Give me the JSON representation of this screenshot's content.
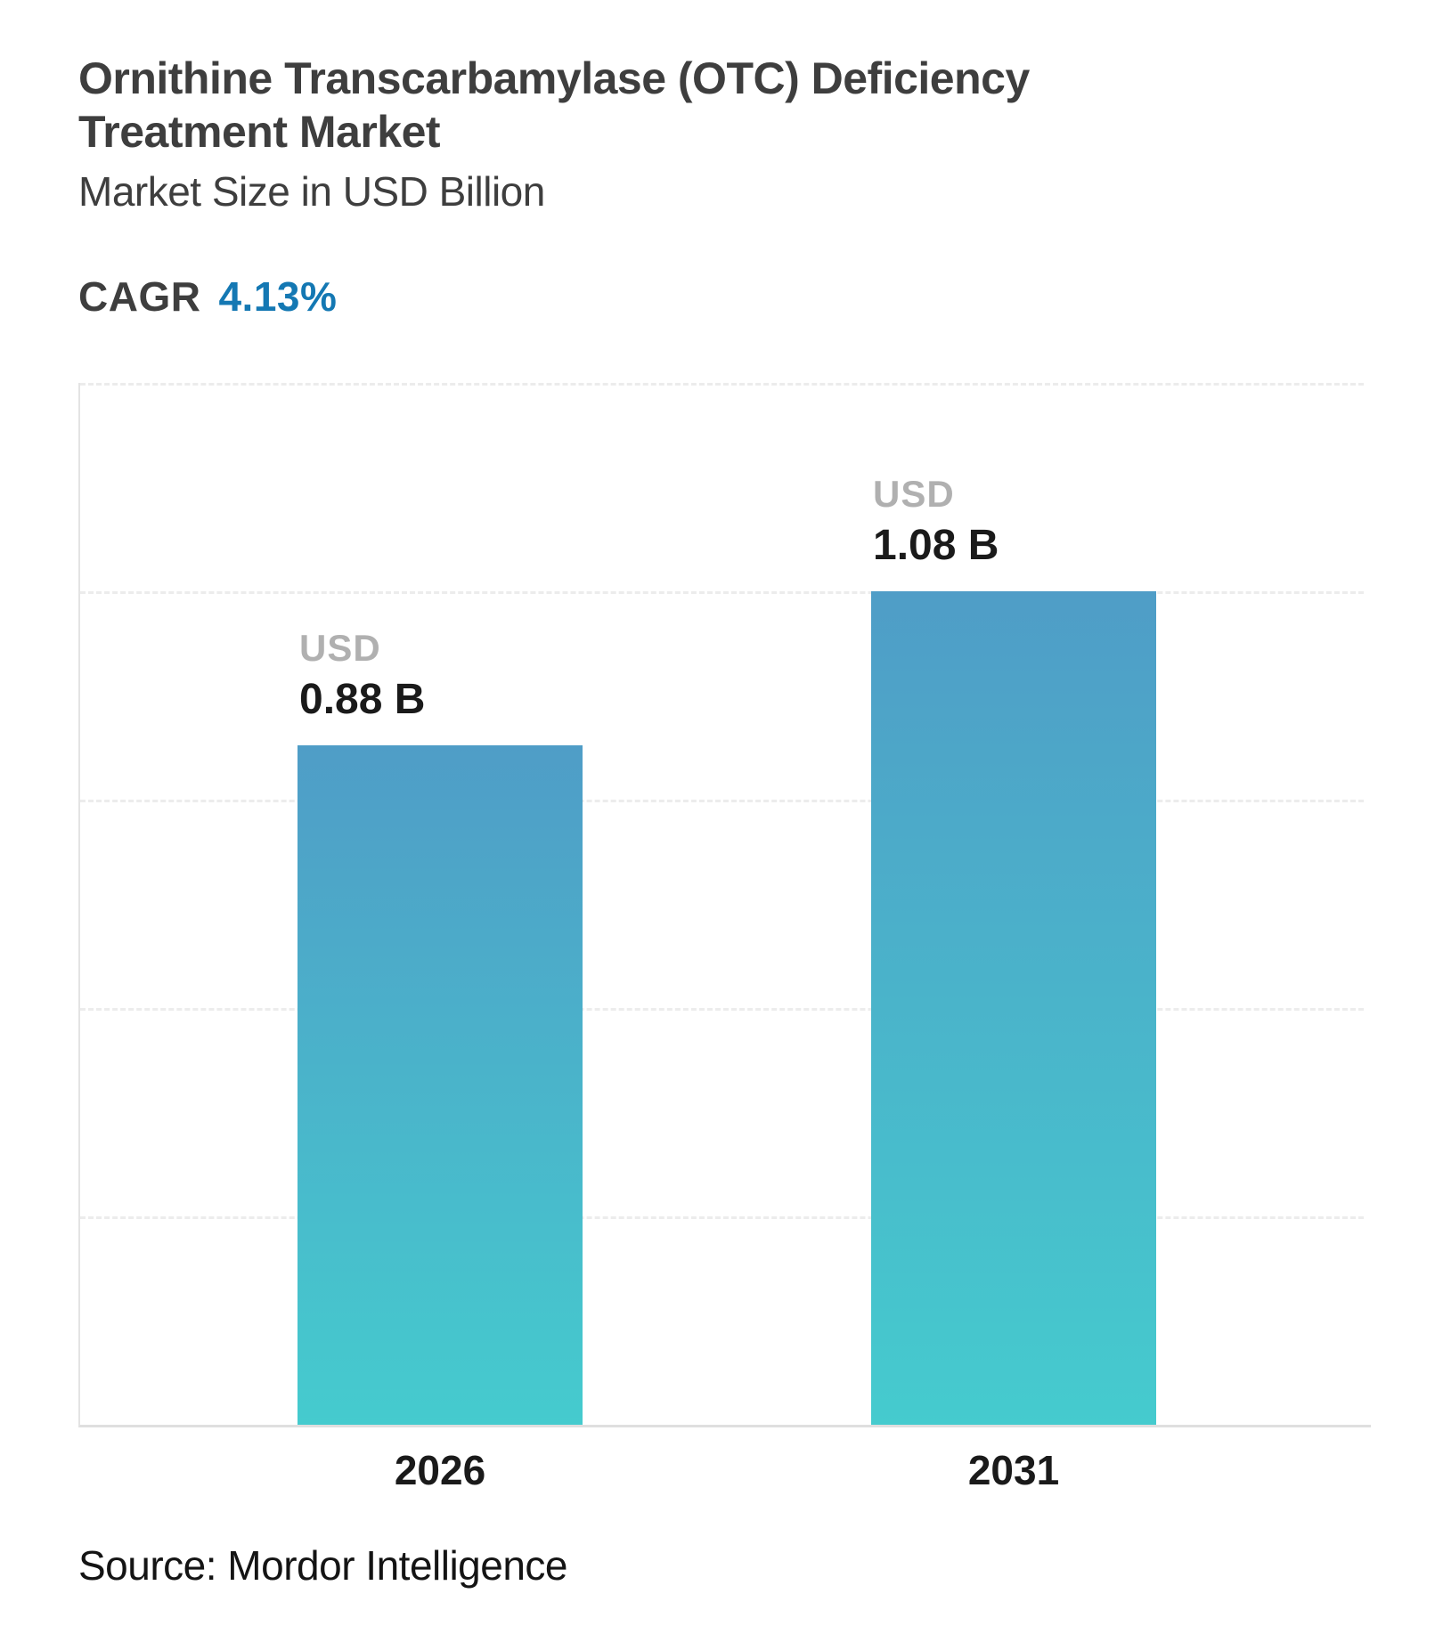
{
  "header": {
    "title_line1": "Ornithine Transcarbamylase (OTC) Deficiency",
    "title_line2": "Treatment Market",
    "subtitle": "Market Size in USD Billion"
  },
  "cagr": {
    "label": "CAGR",
    "value": "4.13%",
    "value_color": "#1478b3"
  },
  "chart_data": {
    "type": "bar",
    "title": "Ornithine Transcarbamylase (OTC) Deficiency Treatment Market",
    "subtitle": "Market Size in USD Billion",
    "unit": "USD Billion",
    "cagr_percent": "4.13%",
    "categories": [
      "2026",
      "2031"
    ],
    "values": [
      0.88,
      1.08
    ],
    "bar_labels": [
      {
        "unit": "USD",
        "value_text": "0.88 B"
      },
      {
        "unit": "USD",
        "value_text": "1.08 B"
      }
    ],
    "ylim": [
      0,
      1.35
    ],
    "gridlines": {
      "visible": true,
      "style": "dashed",
      "values": [
        0.27,
        0.54,
        0.81,
        1.08,
        1.35
      ]
    },
    "legend": "none",
    "bar_gradient_top": "#4f9dc7",
    "bar_gradient_bottom": "#45cbce"
  },
  "footer": {
    "source": "Source: Mordor Intelligence"
  }
}
